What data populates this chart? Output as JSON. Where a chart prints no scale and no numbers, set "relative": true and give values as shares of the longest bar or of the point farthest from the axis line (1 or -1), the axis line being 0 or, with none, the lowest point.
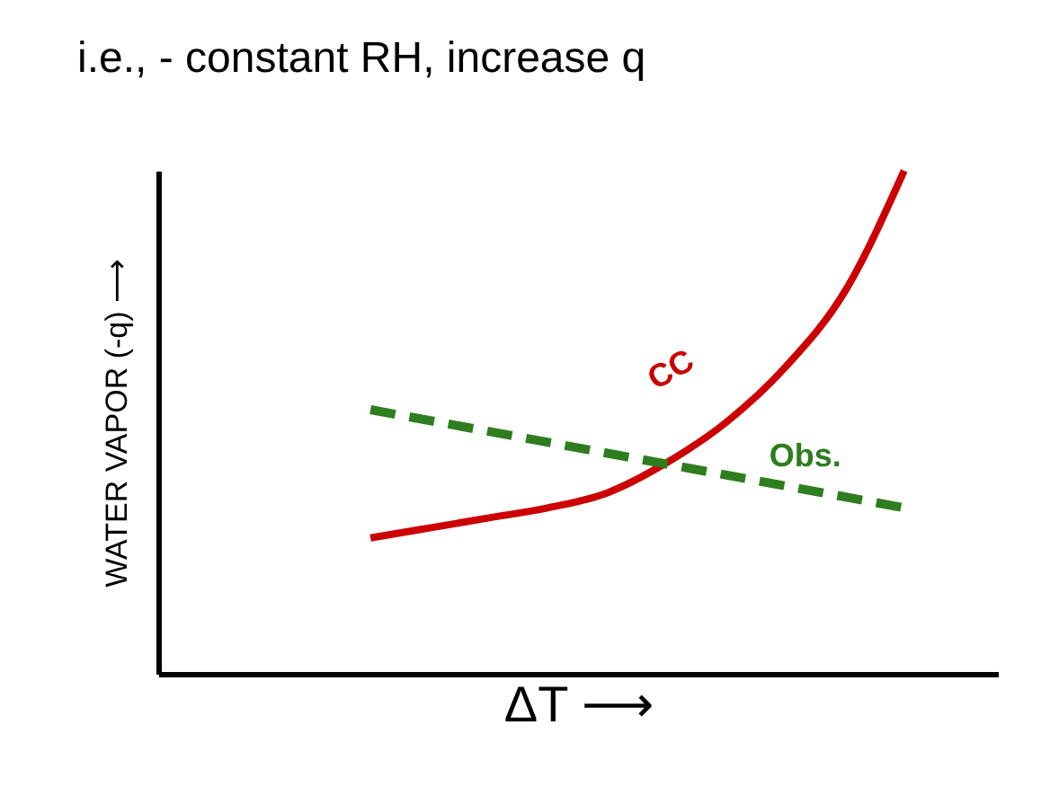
{
  "chart_data": {
    "type": "line",
    "title": "i.e., - constant RH, increase q",
    "xlabel": "ΔT ⟶",
    "ylabel": "WATER VAPOR (-q) ⟶",
    "relative": true,
    "grid": false,
    "marker": "none",
    "categories": [
      null,
      null,
      null,
      null,
      null,
      null,
      null,
      null,
      null,
      null,
      null,
      null,
      null,
      null
    ],
    "series": [
      {
        "name": "CC",
        "color": "#cc0000",
        "line_style": "solid",
        "values": [
          null,
          null,
          null,
          0.27,
          0.29,
          0.31,
          0.33,
          0.36,
          0.42,
          0.5,
          0.61,
          0.76,
          1.0,
          null
        ]
      },
      {
        "name": "Obs.",
        "color": "#2e7d1e",
        "line_style": "dashed",
        "values": [
          null,
          null,
          null,
          0.525,
          null,
          null,
          null,
          null,
          null,
          null,
          null,
          null,
          0.33,
          null
        ]
      }
    ]
  }
}
